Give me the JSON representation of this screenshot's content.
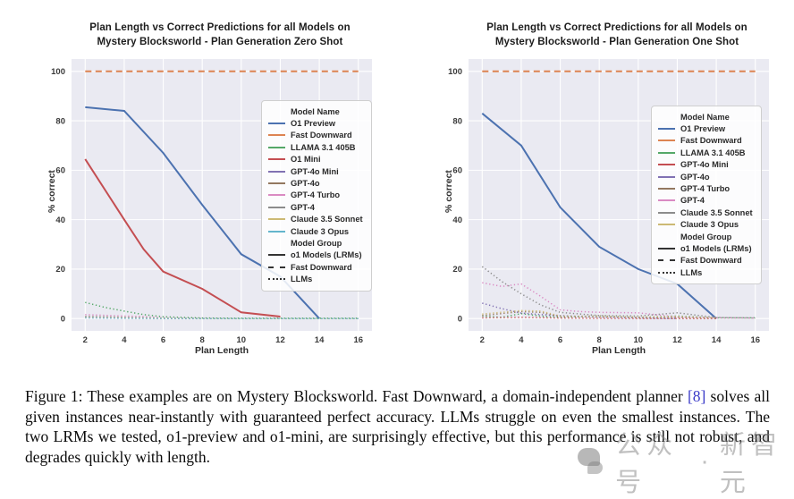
{
  "chart_data": [
    {
      "type": "line",
      "title": "Plan Length vs Correct Predictions for all Models on\nMystery Blocksworld - Plan Generation Zero Shot",
      "xlabel": "Plan Length",
      "ylabel": "% correct",
      "xlim": [
        1.3,
        16.7
      ],
      "ylim": [
        -5,
        105
      ],
      "xticks": [
        2,
        4,
        6,
        8,
        10,
        12,
        14,
        16
      ],
      "yticks": [
        0,
        20,
        40,
        60,
        80,
        100
      ],
      "grid": true,
      "plot_bg": "#eaeaf2",
      "grid_color": "#ffffff",
      "legend_position": "upper right",
      "legend": {
        "model_header": "Model Name",
        "group_header": "Model Group",
        "groups": [
          {
            "label": "o1 Models (LRMs)",
            "style": "solid"
          },
          {
            "label": "Fast Downward",
            "style": "dashed"
          },
          {
            "label": "LLMs",
            "style": "dotted"
          }
        ]
      },
      "series": [
        {
          "name": "O1 Preview",
          "color": "#4c72b0",
          "style": "solid",
          "width": 2,
          "points": [
            [
              2,
              85.5
            ],
            [
              4,
              84
            ],
            [
              6,
              67
            ],
            [
              8,
              46
            ],
            [
              10,
              26
            ],
            [
              12,
              17
            ],
            [
              14,
              0
            ]
          ]
        },
        {
          "name": "Fast Downward",
          "color": "#dd8452",
          "style": "dashed",
          "width": 2,
          "points": [
            [
              2,
              100
            ],
            [
              16,
              100
            ]
          ]
        },
        {
          "name": "LLAMA 3.1 405B",
          "color": "#55a868",
          "style": "dotted",
          "width": 1.5,
          "points": [
            [
              2,
              6.5
            ],
            [
              3,
              4.5
            ],
            [
              4,
              3
            ],
            [
              5,
              1.6
            ],
            [
              6,
              0.7
            ],
            [
              8,
              0.2
            ],
            [
              10,
              0.1
            ],
            [
              12,
              0.1
            ],
            [
              14,
              0.1
            ],
            [
              16,
              0.1
            ]
          ]
        },
        {
          "name": "O1 Mini",
          "color": "#c44e52",
          "style": "solid",
          "width": 2,
          "points": [
            [
              2,
              64.5
            ],
            [
              4,
              40
            ],
            [
              5,
              28
            ],
            [
              6,
              19
            ],
            [
              8,
              12
            ],
            [
              10,
              2.5
            ],
            [
              12,
              0.8
            ]
          ]
        },
        {
          "name": "GPT-4o Mini",
          "color": "#8172b3",
          "style": "dotted",
          "width": 1.5,
          "points": [
            [
              2,
              0.4
            ],
            [
              4,
              0.2
            ],
            [
              6,
              0.1
            ],
            [
              8,
              0
            ],
            [
              10,
              0
            ],
            [
              12,
              0
            ],
            [
              14,
              0
            ],
            [
              16,
              0
            ]
          ]
        },
        {
          "name": "GPT-4o",
          "color": "#937860",
          "style": "dotted",
          "width": 1.5,
          "points": [
            [
              2,
              0.6
            ],
            [
              4,
              0.4
            ],
            [
              6,
              0.1
            ],
            [
              8,
              0
            ],
            [
              10,
              0
            ],
            [
              12,
              0
            ],
            [
              14,
              0
            ],
            [
              16,
              0
            ]
          ]
        },
        {
          "name": "GPT-4 Turbo",
          "color": "#da8bc3",
          "style": "dotted",
          "width": 1.5,
          "points": [
            [
              2,
              1.6
            ],
            [
              4,
              1
            ],
            [
              5,
              0.8
            ],
            [
              6,
              0.3
            ],
            [
              8,
              0.1
            ],
            [
              10,
              0
            ],
            [
              12,
              0
            ],
            [
              14,
              0
            ],
            [
              16,
              0
            ]
          ]
        },
        {
          "name": "GPT-4",
          "color": "#8c8c8c",
          "style": "dotted",
          "width": 1.5,
          "points": [
            [
              2,
              0.9
            ],
            [
              4,
              0.5
            ],
            [
              6,
              0.1
            ],
            [
              8,
              0
            ],
            [
              10,
              0
            ],
            [
              12,
              0
            ],
            [
              14,
              0
            ],
            [
              16,
              0
            ]
          ]
        },
        {
          "name": "Claude 3.5 Sonnet",
          "color": "#ccb974",
          "style": "dotted",
          "width": 1.5,
          "points": [
            [
              2,
              0.5
            ],
            [
              4,
              0.3
            ],
            [
              6,
              0.1
            ],
            [
              8,
              0
            ],
            [
              10,
              0
            ],
            [
              12,
              0
            ],
            [
              14,
              0
            ],
            [
              16,
              0
            ]
          ]
        },
        {
          "name": "Claude 3 Opus",
          "color": "#64b5cd",
          "style": "dotted",
          "width": 1.5,
          "points": [
            [
              2,
              0.3
            ],
            [
              4,
              0.1
            ],
            [
              6,
              0
            ],
            [
              8,
              0
            ],
            [
              10,
              0
            ],
            [
              12,
              0
            ],
            [
              14,
              0
            ],
            [
              16,
              0
            ]
          ]
        }
      ]
    },
    {
      "type": "line",
      "title": "Plan Length vs Correct Predictions for all Models on\nMystery Blocksworld - Plan Generation One Shot",
      "xlabel": "Plan Length",
      "ylabel": "% correct",
      "xlim": [
        1.3,
        16.7
      ],
      "ylim": [
        -5,
        105
      ],
      "xticks": [
        2,
        4,
        6,
        8,
        10,
        12,
        14,
        16
      ],
      "yticks": [
        0,
        20,
        40,
        60,
        80,
        100
      ],
      "grid": true,
      "plot_bg": "#eaeaf2",
      "grid_color": "#ffffff",
      "legend_position": "upper right",
      "legend": {
        "model_header": "Model Name",
        "group_header": "Model Group",
        "groups": [
          {
            "label": "o1 Models (LRMs)",
            "style": "solid"
          },
          {
            "label": "Fast Downward",
            "style": "dashed"
          },
          {
            "label": "LLMs",
            "style": "dotted"
          }
        ]
      },
      "series": [
        {
          "name": "O1 Preview",
          "color": "#4c72b0",
          "style": "solid",
          "width": 2,
          "points": [
            [
              2,
              83
            ],
            [
              4,
              70
            ],
            [
              6,
              45
            ],
            [
              8,
              29
            ],
            [
              10,
              20
            ],
            [
              12,
              14
            ],
            [
              14,
              0
            ]
          ]
        },
        {
          "name": "Fast Downward",
          "color": "#dd8452",
          "style": "dashed",
          "width": 2,
          "points": [
            [
              2,
              100
            ],
            [
              16,
              100
            ]
          ]
        },
        {
          "name": "LLAMA 3.1 405B",
          "color": "#55a868",
          "style": "dotted",
          "width": 1.5,
          "points": [
            [
              2,
              1
            ],
            [
              3,
              0.5
            ],
            [
              4,
              2
            ],
            [
              5,
              1
            ],
            [
              6,
              0.5
            ],
            [
              8,
              1
            ],
            [
              10,
              0.5
            ],
            [
              12,
              1
            ],
            [
              14,
              0.3
            ],
            [
              16,
              0.3
            ]
          ]
        },
        {
          "name": "GPT-4o Mini",
          "color": "#c44e52",
          "style": "dotted",
          "width": 1.5,
          "points": [
            [
              2,
              0.3
            ],
            [
              4,
              0.5
            ],
            [
              6,
              0.2
            ],
            [
              8,
              0.1
            ],
            [
              10,
              0
            ],
            [
              12,
              0
            ],
            [
              14,
              0
            ]
          ]
        },
        {
          "name": "GPT-4o",
          "color": "#8172b3",
          "style": "dotted",
          "width": 1.5,
          "points": [
            [
              2,
              6.2
            ],
            [
              3,
              4
            ],
            [
              4,
              2.2
            ],
            [
              5,
              1.6
            ],
            [
              6,
              1.2
            ],
            [
              8,
              0.5
            ],
            [
              10,
              0.3
            ],
            [
              12,
              0
            ]
          ]
        },
        {
          "name": "GPT-4 Turbo",
          "color": "#937860",
          "style": "dotted",
          "width": 1.5,
          "points": [
            [
              2,
              1.2
            ],
            [
              4,
              2.8
            ],
            [
              5,
              2.5
            ],
            [
              6,
              0.8
            ],
            [
              8,
              1
            ],
            [
              10,
              0.5
            ],
            [
              12,
              0.4
            ],
            [
              14,
              0.2
            ]
          ]
        },
        {
          "name": "GPT-4",
          "color": "#da8bc3",
          "style": "dotted",
          "width": 1.5,
          "points": [
            [
              2,
              14.5
            ],
            [
              3,
              13
            ],
            [
              4,
              14
            ],
            [
              5,
              9
            ],
            [
              6,
              3.5
            ],
            [
              7,
              2.8
            ],
            [
              8,
              2.5
            ],
            [
              10,
              2.3
            ],
            [
              12,
              0.6
            ],
            [
              14,
              0.3
            ],
            [
              16,
              0.2
            ]
          ]
        },
        {
          "name": "Claude 3.5 Sonnet",
          "color": "#8c8c8c",
          "style": "dotted",
          "width": 1.5,
          "points": [
            [
              2,
              21
            ],
            [
              3,
              15
            ],
            [
              4,
              10
            ],
            [
              5,
              5.5
            ],
            [
              6,
              2.5
            ],
            [
              8,
              1.2
            ],
            [
              10,
              1
            ],
            [
              12,
              2.3
            ],
            [
              14,
              0.4
            ],
            [
              16,
              0.2
            ]
          ]
        },
        {
          "name": "Claude 3 Opus",
          "color": "#ccb974",
          "style": "dotted",
          "width": 1.5,
          "points": [
            [
              2,
              1.8
            ],
            [
              4,
              3.2
            ],
            [
              5,
              3
            ],
            [
              6,
              1
            ],
            [
              8,
              0.8
            ],
            [
              10,
              0.6
            ],
            [
              12,
              0.8
            ],
            [
              14,
              0.3
            ]
          ]
        }
      ]
    }
  ],
  "caption": {
    "prefix": "Figure 1: These examples are on Mystery Blocksworld. Fast Downward, a domain-independent planner ",
    "link": "[8]",
    "suffix": " solves all given instances near-instantly with guaranteed perfect accuracy. LLMs struggle on even the smallest instances. The two LRMs we tested, o1-preview and o1-mini, are surprisingly effective, but this performance is still not robust, and degrades quickly with length."
  },
  "watermark": {
    "icon": "chat-bubbles-icon",
    "text1": "公众号",
    "separator": "·",
    "text2": "新智元"
  },
  "colors": {
    "plot_background": "#eaeaf2",
    "gridline": "#ffffff",
    "citation_link": "#3b3bc8"
  }
}
